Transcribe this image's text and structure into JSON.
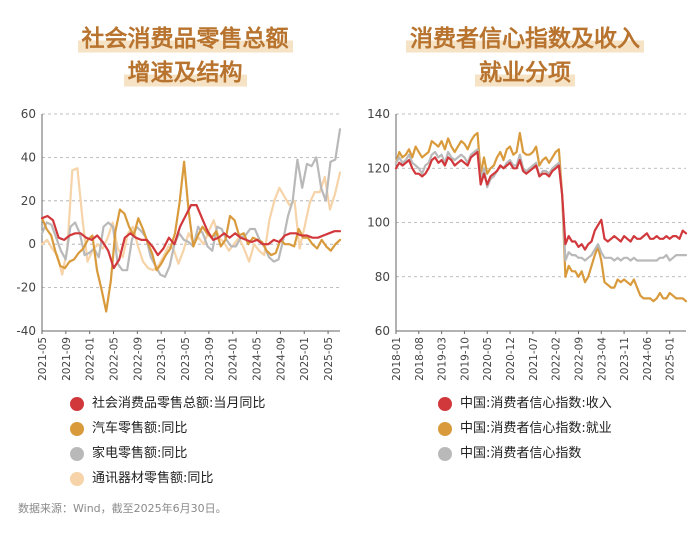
{
  "source_note": "数据来源：Wind，截至2025年6月30日。",
  "colors": {
    "red": "#d1383c",
    "orange": "#d99a3c",
    "gray": "#b9b9b9",
    "peach": "#f6d3a8",
    "title": "#b8742f",
    "grid": "#aaaaaa",
    "axis": "#666666"
  },
  "chart_data": [
    {
      "type": "line",
      "title_lines": [
        "社会消费品零售总额",
        "增速及结构"
      ],
      "ylim": [
        -40,
        60
      ],
      "yticks": [
        -40,
        -20,
        0,
        20,
        40,
        60
      ],
      "xlim": [
        0,
        50
      ],
      "xticks": [
        {
          "label": "2021-05",
          "x": 0
        },
        {
          "label": "2021-09",
          "x": 4
        },
        {
          "label": "2022-01",
          "x": 8
        },
        {
          "label": "2022-05",
          "x": 12
        },
        {
          "label": "2022-09",
          "x": 16
        },
        {
          "label": "2023-01",
          "x": 20
        },
        {
          "label": "2023-05",
          "x": 24
        },
        {
          "label": "2023-09",
          "x": 28
        },
        {
          "label": "2024-01",
          "x": 32
        },
        {
          "label": "2024-05",
          "x": 36
        },
        {
          "label": "2024-09",
          "x": 40
        },
        {
          "label": "2025-01",
          "x": 44
        },
        {
          "label": "2025-05",
          "x": 48
        }
      ],
      "series": [
        {
          "name": "通讯器材零售额:同比",
          "color": "peach",
          "values": [
            0,
            2,
            -2,
            -5,
            -14,
            -2,
            34,
            35,
            12,
            -8,
            -3,
            0,
            -2,
            3,
            10,
            -2,
            -6,
            5,
            8,
            -1,
            -8,
            -11,
            -12,
            -10,
            -6,
            -1,
            -2,
            -9,
            -3,
            5,
            1,
            3,
            0,
            6,
            11,
            3,
            1,
            -3,
            0,
            3,
            -2,
            -8,
            0,
            -3,
            -5,
            11,
            20,
            26,
            22,
            18,
            20,
            -2,
            8,
            19,
            24,
            24,
            31,
            16,
            23,
            33
          ]
        },
        {
          "name": "家电零售额:同比",
          "color": "gray",
          "values": [
            5,
            10,
            9,
            3,
            -3,
            -7,
            8,
            10,
            5,
            -5,
            -4,
            -2,
            -6,
            8,
            10,
            8,
            -9,
            -12,
            -12,
            2,
            8,
            6,
            3,
            -6,
            -10,
            -14,
            -15,
            -10,
            0,
            5,
            2,
            1,
            -1,
            8,
            5,
            -1,
            -3,
            8,
            7,
            2,
            -1,
            -1,
            3,
            4,
            7,
            7,
            2,
            -1,
            -6,
            -8,
            -7,
            2,
            13,
            20,
            39,
            26,
            37,
            36,
            40,
            26,
            20,
            38,
            39,
            53
          ]
        },
        {
          "name": "汽车零售额:同比",
          "color": "orange",
          "values": [
            12,
            7,
            4,
            -4,
            -10,
            -11,
            -8,
            -7,
            -4,
            -2,
            2,
            4,
            -12,
            -21,
            -31,
            -17,
            6,
            16,
            14,
            8,
            4,
            12,
            7,
            1,
            -4,
            -12,
            -9,
            -5,
            -2,
            5,
            19,
            38,
            15,
            -1,
            4,
            8,
            5,
            3,
            6,
            -1,
            2,
            13,
            11,
            4,
            5,
            0,
            3,
            2,
            1,
            -3,
            -5,
            -4,
            2,
            0,
            0,
            -1,
            7,
            3,
            3,
            0,
            -2,
            2,
            -1,
            -3,
            0,
            2
          ]
        },
        {
          "name": "社会消费品零售总额:当月同比",
          "color": "red",
          "values": [
            12,
            13,
            11,
            3,
            2,
            4,
            5,
            5,
            3,
            2,
            4,
            1,
            -3,
            -11,
            -7,
            3,
            5,
            3,
            2,
            2,
            -1,
            -5,
            -2,
            3,
            0,
            8,
            13,
            18,
            18,
            12,
            6,
            2,
            3,
            5,
            3,
            5,
            3,
            2,
            1,
            2,
            0,
            0,
            2,
            1,
            4,
            5,
            5,
            4,
            4,
            3,
            3,
            4,
            5,
            6,
            6
          ]
        }
      ],
      "legend": [
        "社会消费品零售总额:当月同比",
        "汽车零售额:同比",
        "家电零售额:同比",
        "通讯器材零售额:同比"
      ],
      "legend_colors": [
        "red",
        "orange",
        "gray",
        "peach"
      ]
    },
    {
      "type": "line",
      "title_lines": [
        "消费者信心指数及收入",
        "就业分项"
      ],
      "ylim": [
        60,
        140
      ],
      "yticks": [
        60,
        80,
        100,
        120,
        140
      ],
      "xlim": [
        0,
        89
      ],
      "xticks": [
        {
          "label": "2018-01",
          "x": 0
        },
        {
          "label": "2018-08",
          "x": 7
        },
        {
          "label": "2019-03",
          "x": 14
        },
        {
          "label": "2019-10",
          "x": 21
        },
        {
          "label": "2020-05",
          "x": 28
        },
        {
          "label": "2020-12",
          "x": 35
        },
        {
          "label": "2021-07",
          "x": 42
        },
        {
          "label": "2022-02",
          "x": 49
        },
        {
          "label": "2022-09",
          "x": 56
        },
        {
          "label": "2023-04",
          "x": 63
        },
        {
          "label": "2023-11",
          "x": 70
        },
        {
          "label": "2024-06",
          "x": 77
        },
        {
          "label": "2025-01",
          "x": 84
        }
      ],
      "series": [
        {
          "name": "中国:消费者信心指数:就业",
          "color": "orange",
          "values": [
            122,
            126,
            124,
            125,
            127,
            124,
            128,
            126,
            124,
            125,
            126,
            130,
            129,
            128,
            130,
            127,
            131,
            128,
            126,
            128,
            130,
            129,
            127,
            130,
            132,
            133,
            118,
            124,
            118,
            120,
            121,
            124,
            126,
            123,
            127,
            128,
            125,
            126,
            133,
            126,
            125,
            125,
            126,
            128,
            121,
            123,
            124,
            122,
            124,
            126,
            127,
            110,
            80,
            84,
            82,
            82,
            80,
            82,
            78,
            80,
            84,
            88,
            91,
            86,
            78,
            77,
            76,
            76,
            79,
            78,
            79,
            78,
            77,
            79,
            76,
            73,
            72,
            72,
            72,
            71,
            72,
            74,
            72,
            72,
            74,
            73,
            72,
            72,
            72,
            71
          ]
        },
        {
          "name": "中国:消费者信心指数",
          "color": "gray",
          "values": [
            122,
            124,
            122,
            123,
            125,
            122,
            121,
            120,
            118,
            121,
            122,
            125,
            126,
            124,
            125,
            122,
            126,
            124,
            123,
            124,
            125,
            124,
            122,
            125,
            126,
            127,
            116,
            120,
            113,
            116,
            117,
            119,
            121,
            120,
            122,
            123,
            121,
            121,
            125,
            120,
            119,
            120,
            121,
            122,
            117,
            119,
            119,
            118,
            120,
            121,
            122,
            110,
            86,
            89,
            88,
            88,
            87,
            87,
            86,
            87,
            88,
            90,
            92,
            89,
            87,
            87,
            87,
            86,
            87,
            86,
            87,
            87,
            86,
            87,
            86,
            86,
            86,
            86,
            86,
            86,
            86,
            87,
            87,
            88,
            86,
            87,
            88,
            88,
            88,
            88
          ]
        },
        {
          "name": "中国:消费者信心指数:收入",
          "color": "red",
          "values": [
            120,
            122,
            121,
            122,
            123,
            120,
            118,
            118,
            117,
            118,
            120,
            123,
            124,
            122,
            123,
            121,
            124,
            123,
            121,
            122,
            123,
            122,
            121,
            124,
            125,
            126,
            114,
            118,
            114,
            117,
            118,
            119,
            121,
            120,
            121,
            122,
            120,
            120,
            123,
            119,
            118,
            119,
            120,
            121,
            117,
            118,
            118,
            117,
            119,
            120,
            121,
            110,
            92,
            95,
            93,
            93,
            91,
            92,
            90,
            92,
            93,
            97,
            99,
            101,
            94,
            93,
            94,
            95,
            94,
            93,
            95,
            94,
            93,
            95,
            94,
            94,
            95,
            96,
            94,
            94,
            95,
            94,
            94,
            95,
            94,
            95,
            95,
            94,
            97,
            96
          ]
        }
      ],
      "legend": [
        "中国:消费者信心指数:收入",
        "中国:消费者信心指数:就业",
        "中国:消费者信心指数"
      ],
      "legend_colors": [
        "red",
        "orange",
        "gray"
      ]
    }
  ]
}
